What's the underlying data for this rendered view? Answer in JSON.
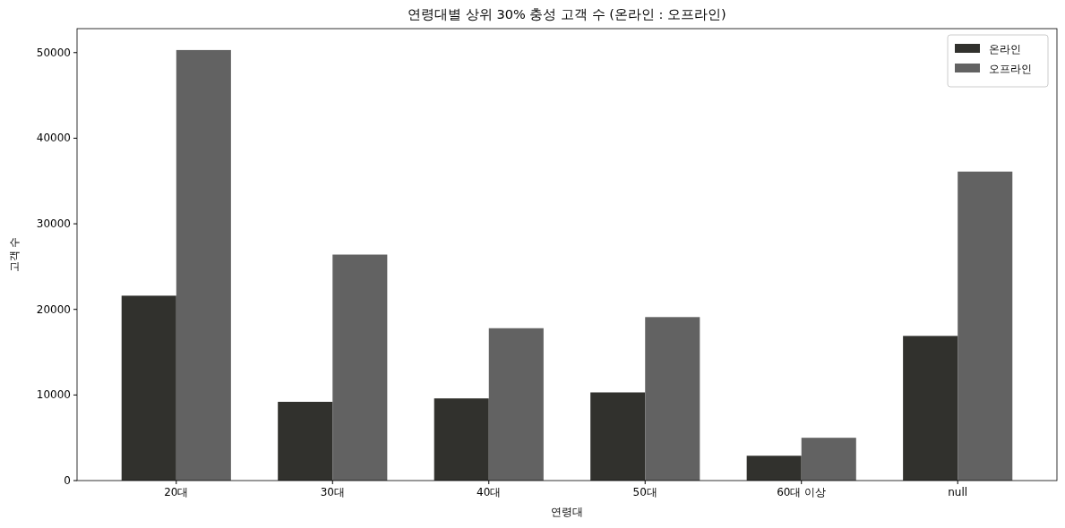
{
  "chart_data": {
    "type": "bar",
    "title": "연령대별 상위 30% 충성 고객 수 (온라인 : 오프라인)",
    "xlabel": "연령대",
    "ylabel": "고객 수",
    "categories": [
      "20대",
      "30대",
      "40대",
      "50대",
      "60대 이상",
      "null"
    ],
    "series": [
      {
        "name": "온라인",
        "color": "#31312d",
        "values": [
          21600,
          9200,
          9600,
          10300,
          2900,
          16900
        ]
      },
      {
        "name": "오프라인",
        "color": "#626262",
        "values": [
          50300,
          26400,
          17800,
          19100,
          5000,
          36100
        ]
      }
    ],
    "ylim": [
      0,
      52800
    ],
    "yticks": [
      0,
      10000,
      20000,
      30000,
      40000,
      50000
    ],
    "grid": false,
    "legend": "top right"
  }
}
